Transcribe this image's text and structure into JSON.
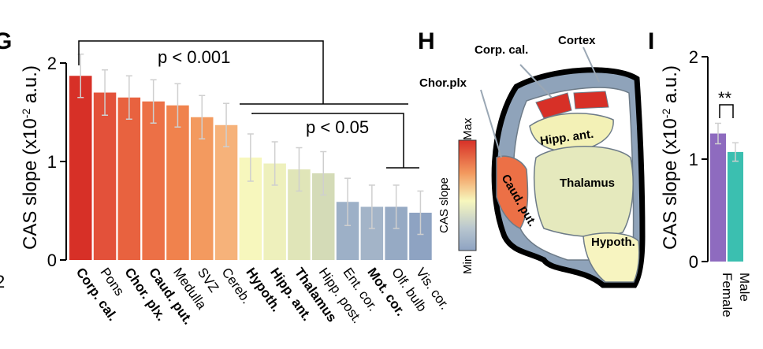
{
  "panels": {
    "g": "G",
    "h": "H",
    "i": "I"
  },
  "stray_text": "2",
  "chart_data": [
    {
      "type": "bar",
      "panel": "G",
      "ylabel": "CAS slope (x10⁻² a.u.)",
      "ylabel_parts": {
        "pre": "CAS slope (x10",
        "sup": "-2",
        "post": " a.u.)"
      },
      "ylim": [
        0,
        2
      ],
      "yticks": [
        0,
        1,
        2
      ],
      "categories": [
        "Corp. cal.",
        "Pons",
        "Chor. plx.",
        "Caud. put.",
        "Medulla",
        "SVZ",
        "Cereb.",
        "Hypoth.",
        "Hipp. ant.",
        "Thalamus",
        "Hipp. post.",
        "Ent. cor.",
        "Mot. cor.",
        "Olf. bulb",
        "Vis. cor."
      ],
      "bold": [
        true,
        false,
        true,
        true,
        false,
        false,
        false,
        true,
        true,
        true,
        false,
        false,
        true,
        false,
        false
      ],
      "values": [
        1.87,
        1.7,
        1.65,
        1.61,
        1.57,
        1.45,
        1.37,
        1.04,
        0.98,
        0.92,
        0.88,
        0.59,
        0.54,
        0.54,
        0.48
      ],
      "errors": [
        0.22,
        0.23,
        0.22,
        0.22,
        0.22,
        0.22,
        0.22,
        0.24,
        0.22,
        0.22,
        0.22,
        0.24,
        0.22,
        0.22,
        0.22
      ],
      "colors": [
        "#d73027",
        "#e3513a",
        "#e8623f",
        "#ec7046",
        "#f0824d",
        "#f39a5f",
        "#f6b27a",
        "#f7f7bd",
        "#eef0bc",
        "#e0e5b8",
        "#d4dbb7",
        "#9db0c7",
        "#a3b4c8",
        "#96aac4",
        "#8ea3c2"
      ],
      "annotations": [
        {
          "text": "p < 0.001"
        },
        {
          "text": "p < 0.05"
        }
      ],
      "grid": false
    },
    {
      "type": "bar",
      "panel": "I",
      "ylabel": "CAS slope (x10⁻² a.u.)",
      "ylabel_parts": {
        "pre": "CAS slope (x10",
        "sup": "-2",
        "post": " a.u.)"
      },
      "ylim": [
        0,
        2
      ],
      "yticks": [
        0,
        1,
        2
      ],
      "categories": [
        "Female",
        "Male"
      ],
      "values": [
        1.25,
        1.07
      ],
      "errors": [
        0.1,
        0.09
      ],
      "colors": [
        "#8e6bbf",
        "#3bbfb0"
      ],
      "annotations": [
        {
          "text": "**"
        }
      ],
      "grid": false
    }
  ],
  "brain_map": {
    "labels": {
      "cortex": "Cortex",
      "corp_cal": "Corp. cal.",
      "chor_plx": "Chor.plx",
      "hipp_ant": "Hipp. ant.",
      "thalamus": "Thalamus",
      "caud_put": "Caud. put.",
      "hypoth": "Hypoth."
    },
    "scale": {
      "title": "CAS slope",
      "max": "Max",
      "min": "Min"
    }
  }
}
